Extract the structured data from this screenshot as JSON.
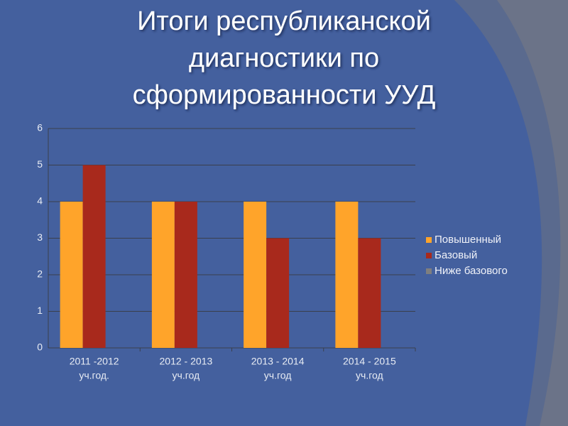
{
  "chart_data": {
    "type": "bar",
    "title": [
      "Итоги республиканской",
      "диагностики по",
      "сформированности УУД"
    ],
    "categories": [
      [
        "2011 -2012",
        "уч.год."
      ],
      [
        "2012 - 2013",
        "уч.год"
      ],
      [
        "2013 - 2014",
        "уч.год"
      ],
      [
        "2014 - 2015",
        "уч.год"
      ]
    ],
    "series": [
      {
        "name": "Повышенный",
        "color": "#ffa42a",
        "values": [
          4,
          4,
          4,
          4
        ]
      },
      {
        "name": "Базовый",
        "color": "#a8291c",
        "values": [
          5,
          4,
          3,
          3
        ]
      },
      {
        "name": "Ниже базового",
        "color": "#7f7f7f",
        "values": [
          0,
          0,
          0,
          0
        ]
      }
    ],
    "ylim": [
      0,
      6
    ],
    "yticks": [
      0,
      1,
      2,
      3,
      4,
      5,
      6
    ],
    "grid": true,
    "legend": "right"
  }
}
